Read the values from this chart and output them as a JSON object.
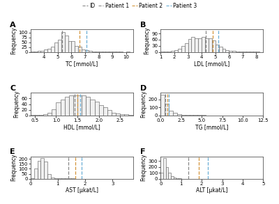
{
  "panels": [
    {
      "label": "A",
      "xlabel": "TC [mmol/L]",
      "ylabel": "Frequency",
      "xlim": [
        3.0,
        10.5
      ],
      "ylim": [
        0,
        115
      ],
      "yticks": [
        0,
        25,
        50,
        75,
        100
      ],
      "xticks": [
        4,
        5,
        6,
        7,
        8,
        9,
        10
      ],
      "bin_width": 0.25,
      "vlines": [
        5.3,
        6.6,
        7.1
      ],
      "bins": [
        3.0,
        3.25,
        3.5,
        3.75,
        4.0,
        4.25,
        4.5,
        4.75,
        5.0,
        5.25,
        5.5,
        5.75,
        6.0,
        6.25,
        6.5,
        6.75,
        7.0,
        7.25,
        7.5,
        7.75,
        8.0,
        8.25,
        8.5,
        8.75,
        9.0,
        9.25,
        9.5,
        9.75,
        10.0,
        10.25
      ],
      "counts": [
        1,
        2,
        4,
        7,
        11,
        16,
        28,
        50,
        62,
        102,
        84,
        55,
        55,
        30,
        28,
        14,
        8,
        5,
        3,
        3,
        2,
        1,
        2,
        2,
        1,
        1,
        1,
        0,
        1,
        0
      ]
    },
    {
      "label": "B",
      "xlabel": "LDL [mmol/L]",
      "ylabel": "Frequency",
      "xlim": [
        1.0,
        8.5
      ],
      "ylim": [
        0,
        110
      ],
      "yticks": [
        0,
        30,
        60,
        90
      ],
      "xticks": [
        1,
        2,
        3,
        4,
        5,
        6,
        7,
        8
      ],
      "bin_width": 0.25,
      "vlines": [
        4.3,
        4.8,
        5.2
      ],
      "bins": [
        1.0,
        1.25,
        1.5,
        1.75,
        2.0,
        2.25,
        2.5,
        2.75,
        3.0,
        3.25,
        3.5,
        3.75,
        4.0,
        4.25,
        4.5,
        4.75,
        5.0,
        5.25,
        5.5,
        5.75,
        6.0,
        6.25,
        6.5,
        6.75,
        7.0,
        7.25,
        7.5,
        7.75,
        8.0,
        8.25
      ],
      "counts": [
        1,
        1,
        2,
        4,
        8,
        14,
        28,
        42,
        62,
        75,
        68,
        65,
        72,
        68,
        65,
        55,
        35,
        25,
        15,
        8,
        5,
        4,
        3,
        2,
        2,
        1,
        1,
        1,
        1,
        0
      ]
    },
    {
      "label": "C",
      "xlabel": "HDL [mmol/L]",
      "ylabel": "Frequency",
      "xlim": [
        0.4,
        2.8
      ],
      "ylim": [
        0,
        80
      ],
      "yticks": [
        0,
        20,
        40,
        60
      ],
      "xticks": [
        0.5,
        1.0,
        1.5,
        2.0,
        2.5
      ],
      "bin_width": 0.1,
      "vlines": [
        1.43,
        1.5,
        1.57
      ],
      "bins": [
        0.4,
        0.5,
        0.6,
        0.7,
        0.8,
        0.9,
        1.0,
        1.1,
        1.2,
        1.3,
        1.4,
        1.5,
        1.6,
        1.7,
        1.8,
        1.9,
        2.0,
        2.1,
        2.2,
        2.3,
        2.4,
        2.5,
        2.6,
        2.7,
        2.8
      ],
      "counts": [
        1,
        1,
        2,
        5,
        10,
        22,
        47,
        57,
        65,
        70,
        72,
        72,
        70,
        65,
        55,
        50,
        37,
        28,
        18,
        10,
        7,
        5,
        3,
        2,
        0
      ]
    },
    {
      "label": "D",
      "xlabel": "TG [mmol/L]",
      "ylabel": "Frequency",
      "xlim": [
        0.0,
        12.5
      ],
      "ylim": [
        0,
        280
      ],
      "yticks": [
        0,
        100,
        200
      ],
      "xticks": [
        0.0,
        2.5,
        5.0,
        7.5,
        10.0,
        12.5
      ],
      "bin_width": 0.5,
      "vlines": [
        0.6,
        0.85,
        1.0
      ],
      "bins": [
        0.0,
        0.5,
        1.0,
        1.5,
        2.0,
        2.5,
        3.0,
        3.5,
        4.0,
        4.5,
        5.0,
        5.5,
        6.0,
        7.0,
        8.0,
        10.0,
        12.0
      ],
      "counts": [
        255,
        148,
        55,
        28,
        15,
        8,
        5,
        4,
        3,
        2,
        2,
        1,
        1,
        1,
        1,
        0,
        0
      ]
    },
    {
      "label": "E",
      "xlabel": "AST [µkat/L]",
      "ylabel": "Frequency",
      "xlim": [
        0.0,
        3.75
      ],
      "ylim": [
        0,
        225
      ],
      "yticks": [
        0,
        50,
        100,
        150,
        200
      ],
      "xticks": [
        0,
        1,
        2,
        3
      ],
      "bin_width": 0.125,
      "vlines": [
        1.38,
        1.65,
        1.87
      ],
      "bins": [
        0.0,
        0.125,
        0.25,
        0.375,
        0.5,
        0.625,
        0.75,
        0.875,
        1.0,
        1.125,
        1.25,
        1.375,
        1.5,
        1.625,
        1.75,
        2.0,
        2.25,
        2.5,
        2.75,
        3.0,
        3.25,
        3.5,
        3.75
      ],
      "counts": [
        5,
        100,
        180,
        210,
        175,
        45,
        12,
        5,
        4,
        3,
        3,
        2,
        2,
        1,
        1,
        1,
        1,
        1,
        0,
        0,
        0,
        0,
        0
      ]
    },
    {
      "label": "F",
      "xlabel": "ALT [µkat/L]",
      "ylabel": "Frequency",
      "xlim": [
        0.0,
        5.0
      ],
      "ylim": [
        0,
        380
      ],
      "yticks": [
        0,
        100,
        200,
        300
      ],
      "xticks": [
        0,
        1,
        2,
        3,
        4,
        5
      ],
      "bin_width": 0.125,
      "vlines": [
        1.35,
        1.85,
        2.3
      ],
      "bins": [
        0.0,
        0.125,
        0.25,
        0.375,
        0.5,
        0.625,
        0.75,
        0.875,
        1.0,
        1.25,
        1.5,
        1.75,
        2.0,
        2.5,
        3.0,
        3.5,
        4.0,
        4.5,
        5.0
      ],
      "counts": [
        100,
        355,
        195,
        100,
        42,
        15,
        5,
        3,
        2,
        2,
        1,
        1,
        1,
        1,
        0,
        0,
        0,
        0,
        0
      ]
    }
  ],
  "vline_colors": [
    "#888888",
    "#D4943A",
    "#6AAED6"
  ],
  "vline_labels": [
    "Patient 1",
    "Patient 2",
    "Patient 3"
  ],
  "bar_facecolor": "#f0f0f0",
  "bar_edgecolor": "#555555",
  "background_color": "#ffffff",
  "fig_width": 4.0,
  "fig_height": 2.93
}
